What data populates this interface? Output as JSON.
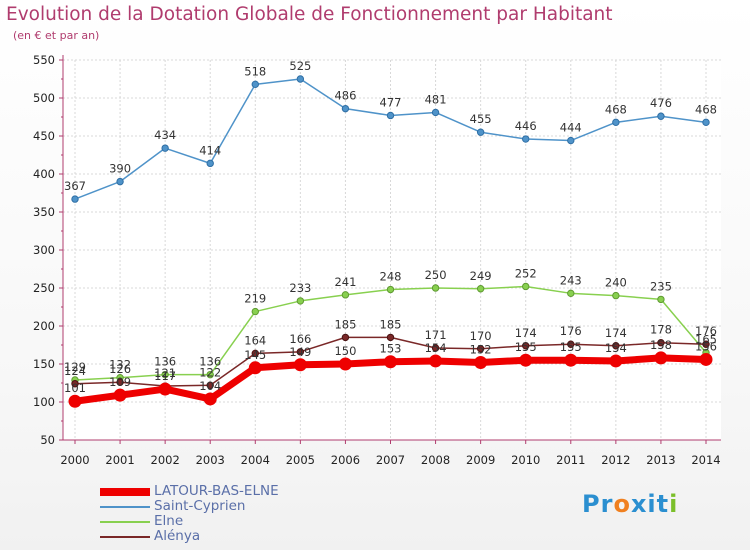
{
  "title": "Evolution de la Dotation Globale de Fonctionnement par Habitant",
  "subtitle": "(en € et par an)",
  "logo": {
    "text": "ProXiti",
    "letters": [
      "P",
      "r",
      "o",
      "x",
      "i",
      "t",
      "i"
    ],
    "colors": [
      "#2b8fd0",
      "#2b8fd0",
      "#f08020",
      "#2b8fd0",
      "#2b8fd0",
      "#2b8fd0",
      "#7bbf2a"
    ]
  },
  "chart_data": {
    "type": "line",
    "title": "Evolution de la Dotation Globale de Fonctionnement par Habitant",
    "subtitle": "(en € et par an)",
    "xlabel": "",
    "ylabel": "",
    "ylim": [
      50,
      550
    ],
    "yticks": [
      50,
      100,
      150,
      200,
      250,
      300,
      350,
      400,
      450,
      500,
      550
    ],
    "grid": true,
    "legend_position": "bottom-left",
    "categories": [
      "2000",
      "2001",
      "2002",
      "2003",
      "2004",
      "2005",
      "2006",
      "2007",
      "2008",
      "2009",
      "2010",
      "2011",
      "2012",
      "2013",
      "2014"
    ],
    "series": [
      {
        "name": "LATOUR-BAS-ELNE",
        "color": "#ee0000",
        "values": [
          101,
          109,
          117,
          104,
          145,
          149,
          150,
          153,
          154,
          152,
          155,
          155,
          154,
          158,
          156
        ],
        "labels": [
          "101",
          "109",
          "117",
          "104",
          "145",
          "149",
          "150",
          "153",
          "154",
          "152",
          "155",
          "155",
          "154",
          "158",
          "156"
        ]
      },
      {
        "name": "Saint-Cyprien",
        "color": "#4f93c9",
        "values": [
          367,
          390,
          434,
          414,
          518,
          525,
          486,
          477,
          481,
          455,
          446,
          444,
          468,
          476,
          468
        ],
        "labels": [
          "367",
          "390",
          "434",
          "414",
          "518",
          "525",
          "486",
          "477",
          "481",
          "455",
          "446",
          "444",
          "468",
          "476",
          "468"
        ]
      },
      {
        "name": "Elne",
        "color": "#88d04f",
        "values": [
          129,
          132,
          136,
          136,
          219,
          233,
          241,
          248,
          250,
          249,
          252,
          243,
          240,
          235,
          165
        ],
        "labels": [
          "129",
          "132",
          "136",
          "136",
          "219",
          "233",
          "241",
          "248",
          "250",
          "249",
          "252",
          "243",
          "240",
          "235",
          "165"
        ]
      },
      {
        "name": "Alénya",
        "color": "#7a2828",
        "values": [
          124,
          126,
          121,
          122,
          164,
          166,
          185,
          185,
          171,
          170,
          174,
          176,
          174,
          178,
          176
        ],
        "labels": [
          "124",
          "126",
          "121",
          "122",
          "164",
          "166",
          "185",
          "185",
          "171",
          "170",
          "174",
          "176",
          "174",
          "178",
          "176"
        ]
      }
    ]
  }
}
